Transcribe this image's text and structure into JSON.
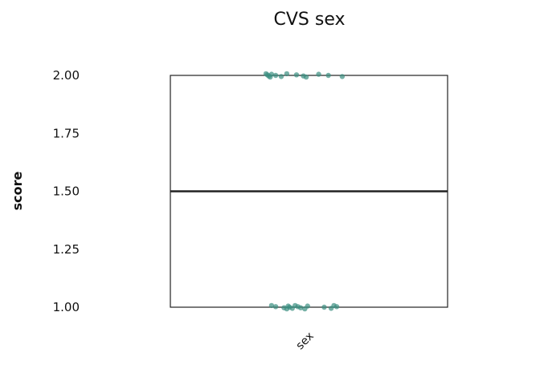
{
  "chart_data": {
    "type": "box",
    "title": "CVS sex",
    "xlabel": "",
    "ylabel": "score",
    "categories": [
      "sex"
    ],
    "ylim": [
      1.0,
      2.0
    ],
    "yticks": [
      "1.00",
      "1.25",
      "1.50",
      "1.75",
      "2.00"
    ],
    "box": {
      "q1": 1.0,
      "median": 1.5,
      "q3": 2.0,
      "min": 1.0,
      "max": 2.0
    },
    "point_color": "#3a8f80",
    "points": [
      {
        "x": -0.31,
        "y": 2.0
      },
      {
        "x": -0.3,
        "y": 2.0
      },
      {
        "x": -0.29,
        "y": 2.0
      },
      {
        "x": -0.28,
        "y": 2.0
      },
      {
        "x": -0.27,
        "y": 2.0
      },
      {
        "x": -0.24,
        "y": 2.0
      },
      {
        "x": -0.2,
        "y": 2.0
      },
      {
        "x": -0.16,
        "y": 2.0
      },
      {
        "x": -0.09,
        "y": 2.0
      },
      {
        "x": -0.04,
        "y": 2.0
      },
      {
        "x": -0.02,
        "y": 2.0
      },
      {
        "x": 0.07,
        "y": 2.0
      },
      {
        "x": 0.14,
        "y": 2.0
      },
      {
        "x": 0.24,
        "y": 2.0
      },
      {
        "x": -0.27,
        "y": 1.0
      },
      {
        "x": -0.24,
        "y": 1.0
      },
      {
        "x": -0.18,
        "y": 1.0
      },
      {
        "x": -0.16,
        "y": 1.0
      },
      {
        "x": -0.15,
        "y": 1.0
      },
      {
        "x": -0.14,
        "y": 1.0
      },
      {
        "x": -0.12,
        "y": 1.0
      },
      {
        "x": -0.1,
        "y": 1.0
      },
      {
        "x": -0.08,
        "y": 1.0
      },
      {
        "x": -0.06,
        "y": 1.0
      },
      {
        "x": -0.03,
        "y": 1.0
      },
      {
        "x": -0.01,
        "y": 1.0
      },
      {
        "x": 0.11,
        "y": 1.0
      },
      {
        "x": 0.16,
        "y": 1.0
      },
      {
        "x": 0.18,
        "y": 1.0
      },
      {
        "x": 0.2,
        "y": 1.0
      }
    ]
  }
}
